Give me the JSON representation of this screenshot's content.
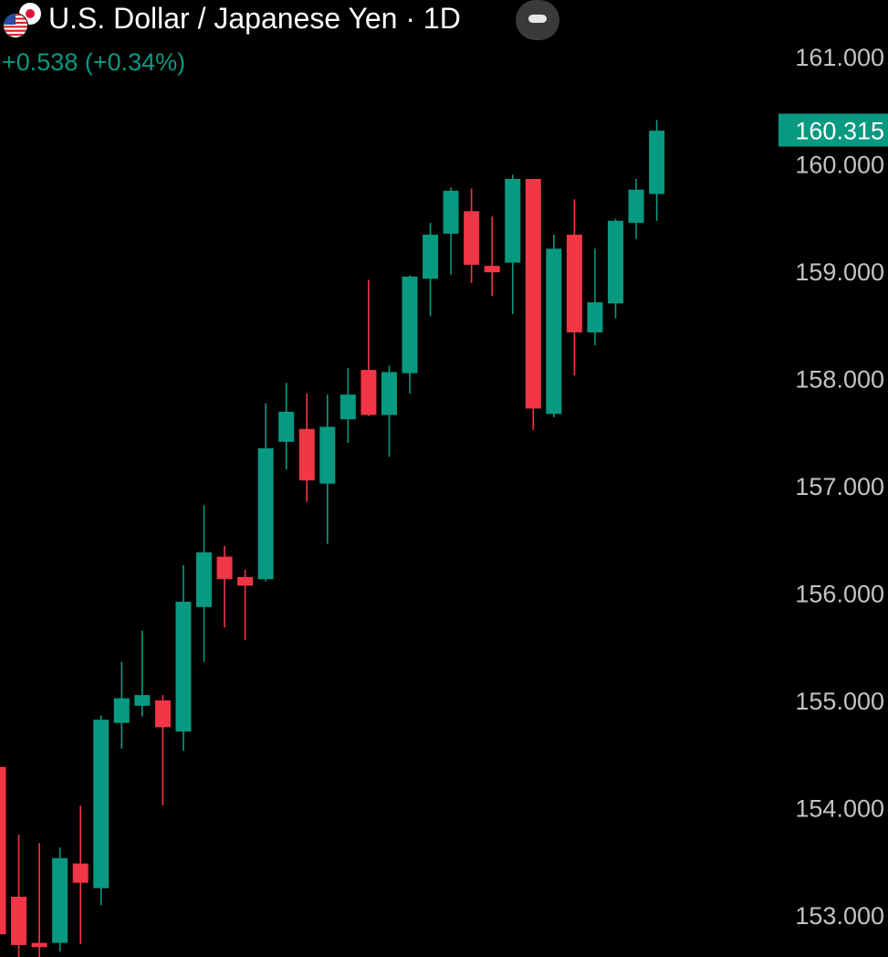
{
  "header": {
    "title": "U.S. Dollar / Japanese Yen",
    "interval": "1D",
    "separator": "·",
    "change": "+0.538 (+0.34%)",
    "flag_icons": [
      "us-flag-icon",
      "japan-flag-icon"
    ],
    "collapse_icon": "minus-icon"
  },
  "colors": {
    "background": "#000000",
    "up": "#089981",
    "down": "#f23645",
    "axis_text": "#c3c3c3",
    "last_price_bg": "#089981"
  },
  "chart_data": {
    "type": "candlestick",
    "title": "U.S. Dollar / Japanese Yen · 1D",
    "price_axis": {
      "position": "right",
      "ticks": [
        "161.000",
        "160.000",
        "159.000",
        "158.000",
        "157.000",
        "156.000",
        "155.000",
        "154.000",
        "153.000"
      ],
      "range": [
        152.6,
        161.55
      ]
    },
    "last_price": "160.315",
    "grid": false,
    "candles": [
      {
        "o": 154.38,
        "h": 154.38,
        "l": 152.82,
        "c": 152.82
      },
      {
        "o": 153.17,
        "h": 153.75,
        "l": 152.55,
        "c": 152.72
      },
      {
        "o": 152.74,
        "h": 153.67,
        "l": 152.55,
        "c": 152.7
      },
      {
        "o": 152.74,
        "h": 153.63,
        "l": 152.66,
        "c": 153.53
      },
      {
        "o": 153.48,
        "h": 154.02,
        "l": 152.73,
        "c": 153.3
      },
      {
        "o": 153.25,
        "h": 154.86,
        "l": 153.09,
        "c": 154.82
      },
      {
        "o": 154.79,
        "h": 155.36,
        "l": 154.55,
        "c": 155.02
      },
      {
        "o": 154.95,
        "h": 155.65,
        "l": 154.85,
        "c": 155.05
      },
      {
        "o": 155.0,
        "h": 155.05,
        "l": 154.02,
        "c": 154.75
      },
      {
        "o": 154.71,
        "h": 156.26,
        "l": 154.53,
        "c": 155.92
      },
      {
        "o": 155.87,
        "h": 156.82,
        "l": 155.36,
        "c": 156.38
      },
      {
        "o": 156.34,
        "h": 156.44,
        "l": 155.68,
        "c": 156.13
      },
      {
        "o": 156.15,
        "h": 156.22,
        "l": 155.56,
        "c": 156.07
      },
      {
        "o": 156.13,
        "h": 157.77,
        "l": 156.11,
        "c": 157.35
      },
      {
        "o": 157.41,
        "h": 157.96,
        "l": 157.15,
        "c": 157.69
      },
      {
        "o": 157.53,
        "h": 157.86,
        "l": 156.85,
        "c": 157.05
      },
      {
        "o": 157.02,
        "h": 157.85,
        "l": 156.46,
        "c": 157.55
      },
      {
        "o": 157.62,
        "h": 158.1,
        "l": 157.4,
        "c": 157.85
      },
      {
        "o": 158.08,
        "h": 158.92,
        "l": 157.65,
        "c": 157.66
      },
      {
        "o": 157.66,
        "h": 158.12,
        "l": 157.27,
        "c": 158.06
      },
      {
        "o": 158.05,
        "h": 158.96,
        "l": 157.86,
        "c": 158.95
      },
      {
        "o": 158.93,
        "h": 159.45,
        "l": 158.58,
        "c": 159.34
      },
      {
        "o": 159.35,
        "h": 159.78,
        "l": 158.97,
        "c": 159.75
      },
      {
        "o": 159.56,
        "h": 159.77,
        "l": 158.89,
        "c": 159.06
      },
      {
        "o": 159.05,
        "h": 159.51,
        "l": 158.77,
        "c": 158.99
      },
      {
        "o": 159.08,
        "h": 159.9,
        "l": 158.6,
        "c": 159.86
      },
      {
        "o": 159.86,
        "h": 159.86,
        "l": 157.52,
        "c": 157.72
      },
      {
        "o": 157.67,
        "h": 159.34,
        "l": 157.64,
        "c": 159.21
      },
      {
        "o": 159.34,
        "h": 159.67,
        "l": 158.03,
        "c": 158.43
      },
      {
        "o": 158.43,
        "h": 159.21,
        "l": 158.31,
        "c": 158.71
      },
      {
        "o": 158.7,
        "h": 159.49,
        "l": 158.56,
        "c": 159.47
      },
      {
        "o": 159.45,
        "h": 159.86,
        "l": 159.3,
        "c": 159.76
      },
      {
        "o": 159.72,
        "h": 160.41,
        "l": 159.47,
        "c": 160.31
      }
    ]
  }
}
